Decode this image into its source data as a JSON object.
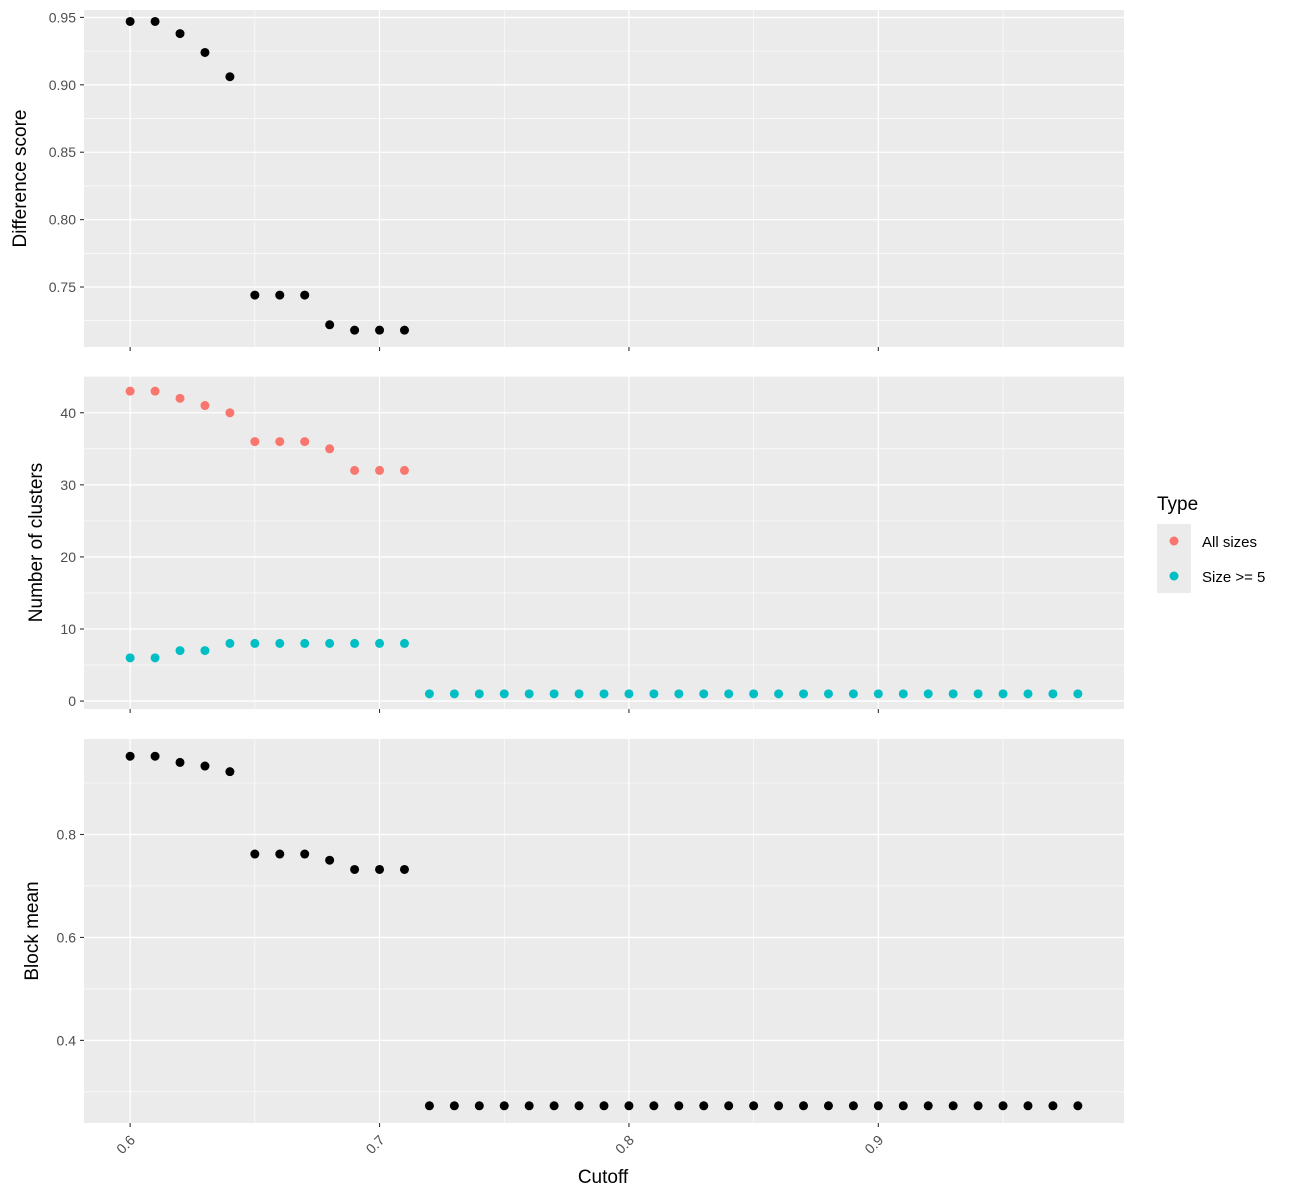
{
  "chart_data": {
    "type": "scatter",
    "xlabel": "Cutoff",
    "x_ticks": [
      0.6,
      0.7,
      0.8,
      0.9
    ],
    "x_tick_labels": [
      "0.6",
      "0.7",
      "0.8",
      "0.9"
    ],
    "xlim": [
      0.5815,
      0.9985
    ],
    "grid": true,
    "legend": {
      "title": "Type",
      "placement": "right",
      "entries": [
        {
          "name": "All sizes",
          "color": "#F8766D"
        },
        {
          "name": "Size >= 5",
          "color": "#00BFC4"
        }
      ]
    },
    "panels": [
      {
        "ylabel": "Difference score",
        "ylim": [
          0.7055,
          0.9555
        ],
        "y_ticks": [
          0.75,
          0.8,
          0.85,
          0.9,
          0.95
        ],
        "y_tick_labels": [
          "0.75",
          "0.80",
          "0.85",
          "0.90",
          "0.95"
        ],
        "series": [
          {
            "color": "#000000",
            "x": [
              0.6,
              0.61,
              0.62,
              0.63,
              0.64,
              0.65,
              0.66,
              0.67,
              0.68,
              0.69,
              0.7,
              0.71
            ],
            "y": [
              0.947,
              0.947,
              0.938,
              0.924,
              0.906,
              0.744,
              0.744,
              0.744,
              0.722,
              0.718,
              0.718,
              0.718
            ]
          }
        ]
      },
      {
        "ylabel": "Number of clusters",
        "ylim": [
          -1.1,
          45.1
        ],
        "y_ticks": [
          0,
          10,
          20,
          30,
          40
        ],
        "y_tick_labels": [
          "0",
          "10",
          "20",
          "30",
          "40"
        ],
        "series": [
          {
            "name": "All sizes",
            "color": "#F8766D",
            "x": [
              0.6,
              0.61,
              0.62,
              0.63,
              0.64,
              0.65,
              0.66,
              0.67,
              0.68,
              0.69,
              0.7,
              0.71
            ],
            "y": [
              43,
              43,
              42,
              41,
              40,
              36,
              36,
              36,
              35,
              32,
              32,
              32
            ]
          },
          {
            "name": "Size >= 5",
            "color": "#00BFC4",
            "x": [
              0.6,
              0.61,
              0.62,
              0.63,
              0.64,
              0.65,
              0.66,
              0.67,
              0.68,
              0.69,
              0.7,
              0.71,
              0.72,
              0.73,
              0.74,
              0.75,
              0.76,
              0.77,
              0.78,
              0.79,
              0.8,
              0.81,
              0.82,
              0.83,
              0.84,
              0.85,
              0.86,
              0.87,
              0.88,
              0.89,
              0.9,
              0.91,
              0.92,
              0.93,
              0.94,
              0.95,
              0.96,
              0.97,
              0.98
            ],
            "y": [
              6,
              6,
              7,
              7,
              8,
              8,
              8,
              8,
              8,
              8,
              8,
              8,
              1,
              1,
              1,
              1,
              1,
              1,
              1,
              1,
              1,
              1,
              1,
              1,
              1,
              1,
              1,
              1,
              1,
              1,
              1,
              1,
              1,
              1,
              1,
              1,
              1,
              1,
              1
            ]
          }
        ]
      },
      {
        "ylabel": "Block mean",
        "ylim": [
          0.2395,
          0.9855
        ],
        "y_ticks": [
          0.4,
          0.6,
          0.8
        ],
        "y_tick_labels": [
          "0.4",
          "0.6",
          "0.8"
        ],
        "series": [
          {
            "color": "#000000",
            "x": [
              0.6,
              0.61,
              0.62,
              0.63,
              0.64,
              0.65,
              0.66,
              0.67,
              0.68,
              0.69,
              0.7,
              0.71,
              0.72,
              0.73,
              0.74,
              0.75,
              0.76,
              0.77,
              0.78,
              0.79,
              0.8,
              0.81,
              0.82,
              0.83,
              0.84,
              0.85,
              0.86,
              0.87,
              0.88,
              0.89,
              0.9,
              0.91,
              0.92,
              0.93,
              0.94,
              0.95,
              0.96,
              0.97,
              0.98
            ],
            "y": [
              0.952,
              0.952,
              0.94,
              0.933,
              0.922,
              0.762,
              0.762,
              0.762,
              0.75,
              0.732,
              0.732,
              0.732,
              0.273,
              0.273,
              0.273,
              0.273,
              0.273,
              0.273,
              0.273,
              0.273,
              0.273,
              0.273,
              0.273,
              0.273,
              0.273,
              0.273,
              0.273,
              0.273,
              0.273,
              0.273,
              0.273,
              0.273,
              0.273,
              0.273,
              0.273,
              0.273,
              0.273,
              0.273,
              0.273
            ]
          }
        ]
      }
    ]
  }
}
